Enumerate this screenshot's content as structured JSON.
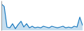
{
  "chart_data": {
    "type": "area",
    "values": [
      38,
      35,
      10,
      9,
      14,
      8,
      13,
      17,
      10,
      14,
      9,
      11,
      9,
      10,
      9,
      11,
      10,
      9,
      11,
      10,
      9,
      10,
      11,
      9,
      10,
      9,
      11,
      10,
      22,
      12
    ],
    "color": "#1a7abf",
    "ylim": [
      6,
      42
    ],
    "tick_labels": false
  }
}
